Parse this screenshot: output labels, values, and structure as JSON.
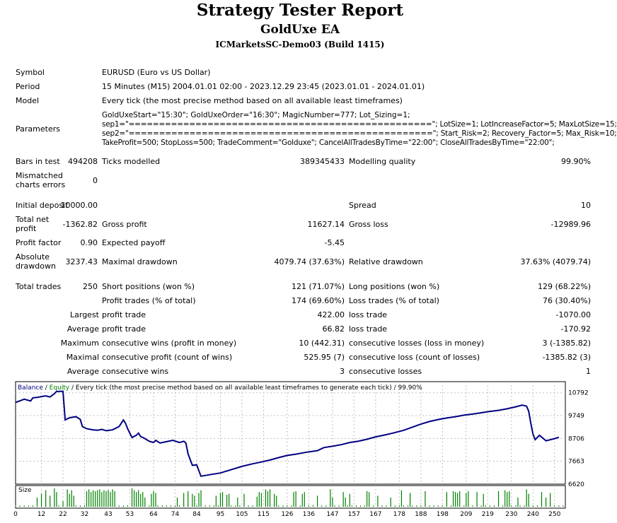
{
  "header": {
    "title": "Strategy Tester Report",
    "ea_name": "GoldUxe EA",
    "server": "ICMarketsSC-Demo03 (Build 1415)"
  },
  "info": {
    "symbol_label": "Symbol",
    "symbol_value": "EURUSD (Euro vs US Dollar)",
    "period_label": "Period",
    "period_value": "15 Minutes (M15) 2004.01.01 02:00 - 2023.12.29 23:45 (2023.01.01 - 2024.01.01)",
    "model_label": "Model",
    "model_value": "Every tick (the most precise method based on all available least timeframes)",
    "parameters_label": "Parameters",
    "parameters": [
      "GoldUxeStart=\"15:30\"; GoldUxeOrder=\"16:30\"; MagicNumber=777; Lot_Sizing=1;",
      "sep1=\"==================================================\"; LotSize=1; LotIncreaseFactor=5; MaxLotSize=15;",
      "sep2=\"==================================================\"; Start_Risk=2; Recovery_Factor=5; Max_Risk=10;",
      "TakeProfit=500; StopLoss=500; TradeComment=\"Golduxe\"; CancelAllTradesByTime=\"22:00\"; CloseAllTradesByTime=\"22:00\";"
    ]
  },
  "stats": {
    "bars_label": "Bars in test",
    "bars_value": "494208",
    "ticks_label": "Ticks modelled",
    "ticks_value": "389345433",
    "quality_label": "Modelling quality",
    "quality_value": "99.90%",
    "mismatch_label_1": "Mismatched",
    "mismatch_label_2": "charts errors",
    "mismatch_value": "0",
    "deposit_label": "Initial deposit",
    "deposit_value": "10000.00",
    "spread_label": "Spread",
    "spread_value": "10",
    "net_label_1": "Total net",
    "net_label_2": "profit",
    "net_value": "-1362.82",
    "gross_profit_label": "Gross profit",
    "gross_profit_value": "11627.14",
    "gross_loss_label": "Gross loss",
    "gross_loss_value": "-12989.96",
    "pf_label": "Profit factor",
    "pf_value": "0.90",
    "ep_label": "Expected payoff",
    "ep_value": "-5.45",
    "abs_dd_label_1": "Absolute",
    "abs_dd_label_2": "drawdown",
    "abs_dd_value": "3237.43",
    "max_dd_label": "Maximal drawdown",
    "max_dd_value": "4079.74 (37.63%)",
    "rel_dd_label": "Relative drawdown",
    "rel_dd_value": "37.63% (4079.74)",
    "trades_label": "Total trades",
    "trades_value": "250",
    "short_label": "Short positions (won %)",
    "short_value": "121 (71.07%)",
    "long_label": "Long positions (won %)",
    "long_value": "129 (68.22%)",
    "pt_label": "Profit trades (% of total)",
    "pt_value": "174 (69.60%)",
    "lt_label": "Loss trades (% of total)",
    "lt_value": "76 (30.40%)",
    "largest_label": "Largest",
    "lpt_label": "profit trade",
    "lpt_value": "422.00",
    "llt_label": "loss trade",
    "llt_value": "-1070.00",
    "average_label": "Average",
    "apt_label": "profit trade",
    "apt_value": "66.82",
    "alt_label": "loss trade",
    "alt_value": "-170.92",
    "maximum_label": "Maximum",
    "mcw_label": "consecutive wins (profit in money)",
    "mcw_value": "10 (442.31)",
    "mcl_label": "consecutive losses (loss in money)",
    "mcl_value": "3 (-1385.82)",
    "maximal_label": "Maximal",
    "mcp_label": "consecutive profit (count of wins)",
    "mcp_value": "525.95 (7)",
    "mcloss_label": "consecutive loss (count of losses)",
    "mcloss_value": "-1385.82 (3)",
    "average2_label": "Average",
    "acw_label": "consecutive wins",
    "acw_value": "3",
    "acl_label": "consecutive losses",
    "acl_value": "1"
  },
  "chart_legend": {
    "balance": "Balance",
    "sep": " / ",
    "equity": "Equity",
    "rest": " / Every tick (the most precise method based on all available least timeframes to generate each tick) / 99.90%"
  },
  "colors": {
    "balance": "#000080",
    "equity": "#008000",
    "grid": "#c0c0c0"
  },
  "chart_data": {
    "type": "line",
    "ylim": [
      6620,
      11300
    ],
    "xlim": [
      0,
      255
    ],
    "y_ticks": [
      "10792",
      "9749",
      "8706",
      "7663",
      "6620"
    ],
    "x_ticks": [
      "0",
      "12",
      "22",
      "32",
      "43",
      "53",
      "64",
      "74",
      "84",
      "95",
      "105",
      "115",
      "126",
      "136",
      "147",
      "157",
      "167",
      "178",
      "188",
      "198",
      "209",
      "219",
      "230",
      "240",
      "250"
    ],
    "size_label": "Size",
    "series": [
      {
        "name": "Balance",
        "x": [
          0,
          4,
          7,
          8,
          10,
          12,
          14,
          16,
          18,
          19,
          22,
          23,
          25,
          28,
          30,
          31,
          33,
          36,
          38,
          40,
          42,
          45,
          48,
          50,
          51,
          52,
          54,
          56,
          57,
          58,
          60,
          62,
          64,
          65,
          67,
          70,
          73,
          76,
          78,
          79,
          80,
          82,
          84,
          86,
          90,
          95,
          100,
          105,
          110,
          114,
          118,
          122,
          126,
          130,
          135,
          140,
          143,
          147,
          151,
          155,
          159,
          163,
          167,
          171,
          175,
          180,
          184,
          188,
          192,
          196,
          200,
          204,
          208,
          212,
          216,
          220,
          224,
          228,
          232,
          235,
          237,
          238,
          239,
          240,
          241,
          243,
          246,
          250,
          252
        ],
        "y": [
          10350,
          10500,
          10420,
          10560,
          10580,
          10620,
          10650,
          10600,
          10750,
          10850,
          10860,
          9550,
          9650,
          9700,
          9580,
          9250,
          9150,
          9100,
          9080,
          9120,
          9060,
          9100,
          9250,
          9550,
          9400,
          9150,
          8750,
          8850,
          8950,
          8800,
          8700,
          8580,
          8520,
          8620,
          8500,
          8560,
          8620,
          8520,
          8580,
          8500,
          8000,
          7480,
          7500,
          6980,
          7050,
          7130,
          7280,
          7430,
          7550,
          7630,
          7720,
          7830,
          7930,
          7990,
          8080,
          8150,
          8290,
          8350,
          8420,
          8520,
          8580,
          8670,
          8780,
          8860,
          8950,
          9080,
          9220,
          9360,
          9480,
          9570,
          9640,
          9700,
          9770,
          9820,
          9880,
          9940,
          9990,
          10060,
          10150,
          10230,
          10180,
          9950,
          9400,
          8900,
          8650,
          8850,
          8600,
          8700,
          8760
        ]
      }
    ],
    "volume_bars": [
      {
        "x": 10,
        "h": 0.5
      },
      {
        "x": 12,
        "h": 0.7
      },
      {
        "x": 14,
        "h": 0.9
      },
      {
        "x": 16,
        "h": 0.6
      },
      {
        "x": 18,
        "h": 1.0
      },
      {
        "x": 19,
        "h": 0.8
      },
      {
        "x": 22,
        "h": 0.3
      },
      {
        "x": 24,
        "h": 0.95
      },
      {
        "x": 25,
        "h": 0.7
      },
      {
        "x": 26,
        "h": 0.9
      },
      {
        "x": 27,
        "h": 0.6
      },
      {
        "x": 33,
        "h": 0.85
      },
      {
        "x": 34,
        "h": 0.95
      },
      {
        "x": 35,
        "h": 0.8
      },
      {
        "x": 36,
        "h": 0.9
      },
      {
        "x": 37,
        "h": 0.85
      },
      {
        "x": 38,
        "h": 0.9
      },
      {
        "x": 39,
        "h": 0.95
      },
      {
        "x": 40,
        "h": 0.8
      },
      {
        "x": 41,
        "h": 0.9
      },
      {
        "x": 42,
        "h": 0.85
      },
      {
        "x": 43,
        "h": 0.9
      },
      {
        "x": 44,
        "h": 0.8
      },
      {
        "x": 45,
        "h": 0.95
      },
      {
        "x": 46,
        "h": 0.85
      },
      {
        "x": 54,
        "h": 1.0
      },
      {
        "x": 55,
        "h": 0.9
      },
      {
        "x": 56,
        "h": 0.8
      },
      {
        "x": 57,
        "h": 0.9
      },
      {
        "x": 58,
        "h": 0.7
      },
      {
        "x": 59,
        "h": 0.8
      },
      {
        "x": 60,
        "h": 0.5
      },
      {
        "x": 63,
        "h": 0.7
      },
      {
        "x": 64,
        "h": 0.85
      },
      {
        "x": 65,
        "h": 0.75
      },
      {
        "x": 75,
        "h": 0.5
      },
      {
        "x": 78,
        "h": 0.75
      },
      {
        "x": 80,
        "h": 0.85
      },
      {
        "x": 82,
        "h": 0.7
      },
      {
        "x": 83,
        "h": 0.6
      },
      {
        "x": 85,
        "h": 0.75
      },
      {
        "x": 86,
        "h": 0.9
      },
      {
        "x": 93,
        "h": 0.6
      },
      {
        "x": 95,
        "h": 0.75
      },
      {
        "x": 96,
        "h": 0.8
      },
      {
        "x": 98,
        "h": 0.65
      },
      {
        "x": 99,
        "h": 0.7
      },
      {
        "x": 103,
        "h": 0.5
      },
      {
        "x": 106,
        "h": 0.7
      },
      {
        "x": 112,
        "h": 0.55
      },
      {
        "x": 113,
        "h": 0.8
      },
      {
        "x": 114,
        "h": 0.75
      },
      {
        "x": 116,
        "h": 0.95
      },
      {
        "x": 117,
        "h": 0.85
      },
      {
        "x": 118,
        "h": 0.95
      },
      {
        "x": 120,
        "h": 0.7
      },
      {
        "x": 121,
        "h": 0.6
      },
      {
        "x": 129,
        "h": 0.8
      },
      {
        "x": 130,
        "h": 0.85
      },
      {
        "x": 133,
        "h": 0.7
      },
      {
        "x": 134,
        "h": 0.8
      },
      {
        "x": 140,
        "h": 0.6
      },
      {
        "x": 146,
        "h": 0.95
      },
      {
        "x": 147,
        "h": 0.5
      },
      {
        "x": 152,
        "h": 0.8
      },
      {
        "x": 153,
        "h": 0.5
      },
      {
        "x": 155,
        "h": 0.7
      },
      {
        "x": 163,
        "h": 0.85
      },
      {
        "x": 164,
        "h": 0.8
      },
      {
        "x": 168,
        "h": 0.6
      },
      {
        "x": 174,
        "h": 0.5
      },
      {
        "x": 179,
        "h": 0.9
      },
      {
        "x": 183,
        "h": 0.75
      },
      {
        "x": 190,
        "h": 0.85
      },
      {
        "x": 200,
        "h": 0.8
      },
      {
        "x": 203,
        "h": 0.85
      },
      {
        "x": 204,
        "h": 0.8
      },
      {
        "x": 205,
        "h": 0.75
      },
      {
        "x": 206,
        "h": 0.85
      },
      {
        "x": 209,
        "h": 0.75
      },
      {
        "x": 210,
        "h": 0.85
      },
      {
        "x": 214,
        "h": 0.8
      },
      {
        "x": 217,
        "h": 0.7
      },
      {
        "x": 224,
        "h": 0.85
      },
      {
        "x": 227,
        "h": 0.9
      },
      {
        "x": 228,
        "h": 0.8
      },
      {
        "x": 229,
        "h": 0.85
      },
      {
        "x": 233,
        "h": 0.5
      },
      {
        "x": 237,
        "h": 0.95
      },
      {
        "x": 238,
        "h": 0.7
      },
      {
        "x": 244,
        "h": 0.8
      },
      {
        "x": 246,
        "h": 0.5
      },
      {
        "x": 248,
        "h": 0.75
      }
    ]
  }
}
